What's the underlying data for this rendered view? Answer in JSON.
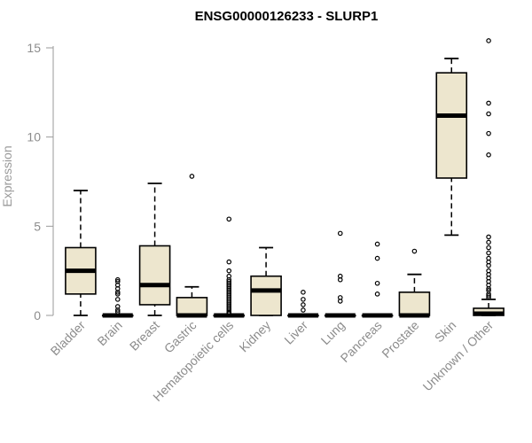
{
  "chart_data": {
    "type": "boxplot",
    "title": "ENSG00000126233 - SLURP1",
    "xlabel": "",
    "ylabel": "Expression",
    "ylim": [
      0,
      15.5
    ],
    "yticks": [
      0,
      5,
      10,
      15
    ],
    "grid": false,
    "colors": {
      "box_fill": "#ede6ce",
      "box_stroke": "#000000",
      "axis": "#9a9a9a",
      "text": "#8c8c8c"
    },
    "categories": [
      "Bladder",
      "Brain",
      "Breast",
      "Gastric",
      "Hematopoietic cells",
      "Kidney",
      "Liver",
      "Lung",
      "Pancreas",
      "Prostate",
      "Skin",
      "Unknown / Other"
    ],
    "boxes": [
      {
        "category": "Bladder",
        "whisker_low": 0.0,
        "q1": 1.2,
        "median": 2.5,
        "q3": 3.8,
        "whisker_high": 7.0,
        "outliers": []
      },
      {
        "category": "Brain",
        "whisker_low": 0.0,
        "q1": 0.0,
        "median": 0.0,
        "q3": 0.0,
        "whisker_high": 0.0,
        "outliers": [
          0.2,
          0.3,
          0.5,
          0.9,
          1.2,
          1.3,
          1.5,
          1.7,
          1.9,
          2.0
        ]
      },
      {
        "category": "Breast",
        "whisker_low": 0.0,
        "q1": 0.6,
        "median": 1.7,
        "q3": 3.9,
        "whisker_high": 7.4,
        "outliers": []
      },
      {
        "category": "Gastric",
        "whisker_low": 0.0,
        "q1": 0.0,
        "median": 0.0,
        "q3": 1.0,
        "whisker_high": 1.6,
        "outliers": [
          7.8
        ]
      },
      {
        "category": "Hematopoietic cells",
        "whisker_low": 0.0,
        "q1": 0.0,
        "median": 0.0,
        "q3": 0.0,
        "whisker_high": 0.0,
        "outliers": [
          0.1,
          0.15,
          0.2,
          0.3,
          0.4,
          0.5,
          0.6,
          0.7,
          0.8,
          0.9,
          1.0,
          1.1,
          1.2,
          1.3,
          1.4,
          1.5,
          1.6,
          1.7,
          1.8,
          1.9,
          2.0,
          2.2,
          2.5,
          3.0,
          5.4
        ]
      },
      {
        "category": "Kidney",
        "whisker_low": 0.0,
        "q1": 0.0,
        "median": 1.4,
        "q3": 2.2,
        "whisker_high": 3.8,
        "outliers": []
      },
      {
        "category": "Liver",
        "whisker_low": 0.0,
        "q1": 0.0,
        "median": 0.0,
        "q3": 0.0,
        "whisker_high": 0.0,
        "outliers": [
          0.3,
          0.6,
          0.9,
          1.3
        ]
      },
      {
        "category": "Lung",
        "whisker_low": 0.0,
        "q1": 0.0,
        "median": 0.0,
        "q3": 0.0,
        "whisker_high": 0.0,
        "outliers": [
          0.8,
          1.0,
          2.0,
          2.2,
          4.6
        ]
      },
      {
        "category": "Pancreas",
        "whisker_low": 0.0,
        "q1": 0.0,
        "median": 0.0,
        "q3": 0.0,
        "whisker_high": 0.0,
        "outliers": [
          1.2,
          1.8,
          3.2,
          4.0
        ]
      },
      {
        "category": "Prostate",
        "whisker_low": 0.0,
        "q1": 0.0,
        "median": 0.0,
        "q3": 1.3,
        "whisker_high": 2.3,
        "outliers": [
          3.6
        ]
      },
      {
        "category": "Skin",
        "whisker_low": 4.5,
        "q1": 7.7,
        "median": 11.2,
        "q3": 13.6,
        "whisker_high": 14.4,
        "outliers": []
      },
      {
        "category": "Unknown / Other",
        "whisker_low": 0.0,
        "q1": 0.0,
        "median": 0.1,
        "q3": 0.4,
        "whisker_high": 0.9,
        "outliers": [
          1.0,
          1.1,
          1.2,
          1.4,
          1.5,
          1.7,
          1.9,
          2.1,
          2.3,
          2.5,
          2.8,
          3.0,
          3.2,
          3.5,
          3.8,
          4.1,
          4.4,
          9.0,
          10.2,
          11.3,
          11.9,
          15.4
        ]
      }
    ]
  }
}
